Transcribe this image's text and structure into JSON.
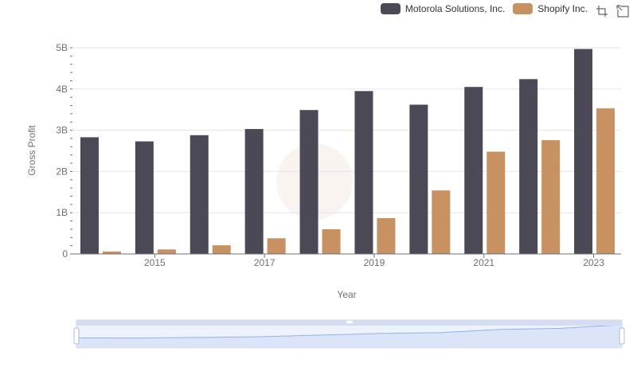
{
  "chart_data": {
    "type": "bar",
    "title": "",
    "xlabel": "Year",
    "ylabel": "Gross Profit",
    "categories": [
      "2014",
      "2015",
      "2016",
      "2017",
      "2018",
      "2019",
      "2020",
      "2021",
      "2022",
      "2023"
    ],
    "x_tick_labels": [
      "2015",
      "2017",
      "2019",
      "2021",
      "2023"
    ],
    "y_tick_labels": [
      "0",
      "1B",
      "2B",
      "3B",
      "4B",
      "5B"
    ],
    "ylim": [
      0,
      5000000000
    ],
    "grid": true,
    "legend_position": "top-right",
    "series": [
      {
        "name": "Motorola Solutions, Inc.",
        "color": "#4a4955",
        "values": [
          2830000000,
          2730000000,
          2880000000,
          3030000000,
          3490000000,
          3950000000,
          3620000000,
          4050000000,
          4240000000,
          4970000000
        ]
      },
      {
        "name": "Shopify Inc.",
        "color": "#c89162",
        "values": [
          60000000,
          110000000,
          210000000,
          380000000,
          600000000,
          870000000,
          1540000000,
          2480000000,
          2760000000,
          3530000000
        ]
      }
    ],
    "dataZoom": {
      "start": 0,
      "end": 100
    }
  },
  "toolbox": {
    "zoom_icon": "zoom-icon",
    "reset_icon": "restore-icon"
  }
}
